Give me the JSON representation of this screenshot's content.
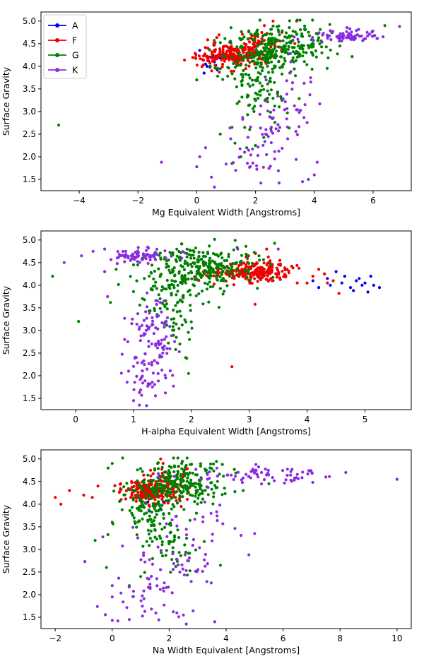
{
  "chart_data": [
    {
      "type": "scatter",
      "xlabel": "Mg Equivalent Width [Angstroms]",
      "ylabel": "Surface Gravity",
      "xlim": [
        -5.3,
        7.3
      ],
      "ylim": [
        1.25,
        5.2
      ],
      "xticks": [
        -4,
        -2,
        0,
        2,
        4,
        6
      ],
      "yticks": [
        1.5,
        2.0,
        2.5,
        3.0,
        3.5,
        4.0,
        4.5,
        5.0
      ],
      "legend": {
        "placement": "top-left",
        "entries": [
          "A",
          "F",
          "G",
          "K"
        ]
      },
      "series": [
        {
          "name": "A",
          "color": "#0000ee",
          "points": [
            [
              0.1,
              4.35
            ],
            [
              0.3,
              4.05
            ],
            [
              0.45,
              3.98
            ],
            [
              0.6,
              4.1
            ],
            [
              0.5,
              4.2
            ],
            [
              0.35,
              4.0
            ],
            [
              0.7,
              3.92
            ],
            [
              0.25,
              3.85
            ],
            [
              0.55,
              4.25
            ],
            [
              0.8,
              4.18
            ],
            [
              0.4,
              4.12
            ],
            [
              0.65,
              4.02
            ]
          ]
        },
        {
          "name": "F",
          "color": "#ee0000",
          "clusters": [
            {
              "center": [
                1.1,
                4.22
              ],
              "spread": [
                0.55,
                0.12
              ],
              "count": 200
            },
            {
              "center": [
                2.1,
                4.5
              ],
              "spread": [
                0.5,
                0.15
              ],
              "count": 60
            }
          ],
          "points": [
            [
              2.6,
              5.0
            ],
            [
              3.4,
              5.0
            ],
            [
              2.3,
              4.9
            ],
            [
              0.2,
              4.15
            ],
            [
              2.9,
              4.75
            ]
          ]
        },
        {
          "name": "G",
          "color": "#008000",
          "clusters": [
            {
              "center": [
                2.8,
                4.45
              ],
              "spread": [
                0.9,
                0.25
              ],
              "count": 260
            },
            {
              "center": [
                2.0,
                3.9
              ],
              "spread": [
                0.6,
                0.3
              ],
              "count": 90
            },
            {
              "center": [
                2.2,
                3.2
              ],
              "spread": [
                0.5,
                0.35
              ],
              "count": 40
            }
          ],
          "points": [
            [
              -4.7,
              2.7
            ],
            [
              6.4,
              4.9
            ],
            [
              0.0,
              3.7
            ],
            [
              1.2,
              2.65
            ],
            [
              1.3,
              2.3
            ],
            [
              1.5,
              2.0
            ],
            [
              1.2,
              1.85
            ],
            [
              1.8,
              2.6
            ],
            [
              1.7,
              2.2
            ],
            [
              0.8,
              2.5
            ]
          ]
        },
        {
          "name": "K",
          "color": "#8a2be2",
          "clusters": [
            {
              "center": [
                5.0,
                4.65
              ],
              "spread": [
                0.55,
                0.08
              ],
              "count": 70
            },
            {
              "center": [
                2.4,
                2.7
              ],
              "spread": [
                0.7,
                0.3
              ],
              "count": 45
            },
            {
              "center": [
                2.1,
                1.95
              ],
              "spread": [
                0.7,
                0.2
              ],
              "count": 25
            },
            {
              "center": [
                3.2,
                3.4
              ],
              "spread": [
                0.5,
                0.35
              ],
              "count": 20
            }
          ],
          "points": [
            [
              -1.2,
              1.88
            ],
            [
              0.0,
              1.78
            ],
            [
              0.6,
              1.33
            ],
            [
              0.5,
              1.55
            ],
            [
              0.1,
              2.0
            ],
            [
              0.3,
              2.2
            ],
            [
              4.1,
              1.88
            ],
            [
              6.9,
              4.88
            ],
            [
              3.8,
              1.5
            ],
            [
              2.8,
              1.42
            ],
            [
              3.6,
              1.45
            ],
            [
              4.0,
              1.6
            ],
            [
              5.8,
              4.75
            ]
          ]
        }
      ]
    },
    {
      "type": "scatter",
      "xlabel": "H-alpha Equivalent Width [Angstroms]",
      "ylabel": "Surface Gravity",
      "xlim": [
        -0.6,
        5.8
      ],
      "ylim": [
        1.25,
        5.2
      ],
      "xticks": [
        0,
        1,
        2,
        3,
        4,
        5
      ],
      "yticks": [
        1.5,
        2.0,
        2.5,
        3.0,
        3.5,
        4.0,
        4.5,
        5.0
      ],
      "series": [
        {
          "name": "A",
          "color": "#0000ee",
          "points": [
            [
              4.1,
              4.1
            ],
            [
              4.3,
              4.25
            ],
            [
              4.35,
              4.15
            ],
            [
              4.5,
              4.3
            ],
            [
              4.6,
              4.05
            ],
            [
              4.75,
              3.95
            ],
            [
              4.85,
              4.1
            ],
            [
              4.95,
              4.0
            ],
            [
              5.05,
              3.85
            ],
            [
              5.15,
              4.0
            ],
            [
              5.25,
              3.95
            ],
            [
              5.1,
              4.2
            ],
            [
              4.2,
              3.95
            ],
            [
              4.4,
              4.0
            ],
            [
              4.65,
              4.2
            ],
            [
              4.8,
              3.88
            ],
            [
              5.0,
              4.05
            ],
            [
              4.9,
              4.15
            ]
          ]
        },
        {
          "name": "F",
          "color": "#ee0000",
          "clusters": [
            {
              "center": [
                3.05,
                4.3
              ],
              "spread": [
                0.35,
                0.12
              ],
              "count": 230
            }
          ],
          "points": [
            [
              4.1,
              4.2
            ],
            [
              4.2,
              4.35
            ],
            [
              4.35,
              4.05
            ],
            [
              4.55,
              3.82
            ],
            [
              4.0,
              4.05
            ],
            [
              3.1,
              3.58
            ],
            [
              2.7,
              2.2
            ],
            [
              3.3,
              4.8
            ],
            [
              4.3,
              4.25
            ],
            [
              4.45,
              4.1
            ]
          ]
        },
        {
          "name": "G",
          "color": "#008000",
          "clusters": [
            {
              "center": [
                2.2,
                4.4
              ],
              "spread": [
                0.45,
                0.25
              ],
              "count": 260
            },
            {
              "center": [
                1.7,
                3.8
              ],
              "spread": [
                0.35,
                0.3
              ],
              "count": 80
            },
            {
              "center": [
                1.7,
                3.0
              ],
              "spread": [
                0.15,
                0.3
              ],
              "count": 25
            }
          ],
          "points": [
            [
              -0.4,
              4.2
            ],
            [
              0.05,
              3.2
            ],
            [
              0.6,
              3.62
            ],
            [
              0.7,
              4.35
            ],
            [
              1.0,
              4.45
            ],
            [
              1.8,
              2.7
            ],
            [
              1.9,
              2.4
            ],
            [
              1.95,
              2.05
            ]
          ]
        },
        {
          "name": "K",
          "color": "#8a2be2",
          "clusters": [
            {
              "center": [
                1.15,
                4.65
              ],
              "spread": [
                0.25,
                0.08
              ],
              "count": 70
            },
            {
              "center": [
                1.3,
                2.7
              ],
              "spread": [
                0.2,
                0.35
              ],
              "count": 70
            },
            {
              "center": [
                1.2,
                1.9
              ],
              "spread": [
                0.2,
                0.25
              ],
              "count": 35
            },
            {
              "center": [
                1.35,
                3.4
              ],
              "spread": [
                0.15,
                0.25
              ],
              "count": 20
            }
          ],
          "points": [
            [
              -0.2,
              4.5
            ],
            [
              0.1,
              4.65
            ],
            [
              0.3,
              4.75
            ],
            [
              0.5,
              4.8
            ],
            [
              0.5,
              4.3
            ],
            [
              0.55,
              3.75
            ],
            [
              0.9,
              2.75
            ],
            [
              3.5,
              4.8
            ],
            [
              2.8,
              4.8
            ],
            [
              1.0,
              1.45
            ],
            [
              1.1,
              1.35
            ]
          ]
        }
      ]
    },
    {
      "type": "scatter",
      "xlabel": "Na Width Equivalent [Angstroms]",
      "ylabel": "Surface Gravity",
      "xlim": [
        -2.5,
        10.5
      ],
      "ylim": [
        1.25,
        5.2
      ],
      "xticks": [
        -2,
        0,
        2,
        4,
        6,
        8,
        10
      ],
      "yticks": [
        1.5,
        2.0,
        2.5,
        3.0,
        3.5,
        4.0,
        4.5,
        5.0
      ],
      "series": [
        {
          "name": "A",
          "color": "#0000ee",
          "points": [
            [
              1.0,
              4.1
            ],
            [
              1.2,
              4.25
            ],
            [
              1.4,
              4.15
            ],
            [
              1.5,
              4.0
            ],
            [
              1.7,
              3.9
            ],
            [
              1.3,
              3.85
            ],
            [
              1.1,
              4.3
            ],
            [
              1.6,
              4.2
            ],
            [
              0.9,
              4.45
            ],
            [
              1.8,
              4.05
            ],
            [
              1.45,
              4.35
            ],
            [
              1.25,
              4.05
            ]
          ]
        },
        {
          "name": "F",
          "color": "#ee0000",
          "clusters": [
            {
              "center": [
                1.3,
                4.28
              ],
              "spread": [
                0.45,
                0.12
              ],
              "count": 220
            },
            {
              "center": [
                2.0,
                4.45
              ],
              "spread": [
                0.5,
                0.2
              ],
              "count": 50
            }
          ],
          "points": [
            [
              -2.0,
              4.15
            ],
            [
              -1.8,
              4.0
            ],
            [
              -1.5,
              4.3
            ],
            [
              -1.0,
              4.2
            ],
            [
              -0.7,
              4.15
            ],
            [
              -0.5,
              4.4
            ],
            [
              1.7,
              5.0
            ],
            [
              0.3,
              4.45
            ]
          ]
        },
        {
          "name": "G",
          "color": "#008000",
          "clusters": [
            {
              "center": [
                2.3,
                4.45
              ],
              "spread": [
                0.8,
                0.25
              ],
              "count": 260
            },
            {
              "center": [
                1.5,
                3.8
              ],
              "spread": [
                0.6,
                0.35
              ],
              "count": 100
            },
            {
              "center": [
                2.2,
                3.0
              ],
              "spread": [
                0.6,
                0.3
              ],
              "count": 40
            }
          ],
          "points": [
            [
              -0.6,
              3.2
            ],
            [
              -0.2,
              2.6
            ],
            [
              0.0,
              4.9
            ],
            [
              4.6,
              4.3
            ],
            [
              5.5,
              4.45
            ],
            [
              3.8,
              2.65
            ],
            [
              0.0,
              3.6
            ],
            [
              0.6,
              2.2
            ],
            [
              1.0,
              2.4
            ]
          ]
        },
        {
          "name": "K",
          "color": "#8a2be2",
          "clusters": [
            {
              "center": [
                5.3,
                4.65
              ],
              "spread": [
                1.2,
                0.1
              ],
              "count": 70
            },
            {
              "center": [
                2.0,
                2.6
              ],
              "spread": [
                1.0,
                0.35
              ],
              "count": 50
            },
            {
              "center": [
                1.5,
                1.85
              ],
              "spread": [
                0.8,
                0.25
              ],
              "count": 30
            },
            {
              "center": [
                3.0,
                3.5
              ],
              "spread": [
                0.8,
                0.35
              ],
              "count": 25
            }
          ],
          "points": [
            [
              10.0,
              4.55
            ],
            [
              8.2,
              4.7
            ],
            [
              7.5,
              4.6
            ],
            [
              0.0,
              1.95
            ],
            [
              0.0,
              2.2
            ],
            [
              0.2,
              1.42
            ],
            [
              0.6,
              1.45
            ],
            [
              2.5,
              1.55
            ],
            [
              2.6,
              1.35
            ],
            [
              3.6,
              1.4
            ],
            [
              4.8,
              2.88
            ],
            [
              5.0,
              3.35
            ]
          ]
        }
      ]
    }
  ]
}
